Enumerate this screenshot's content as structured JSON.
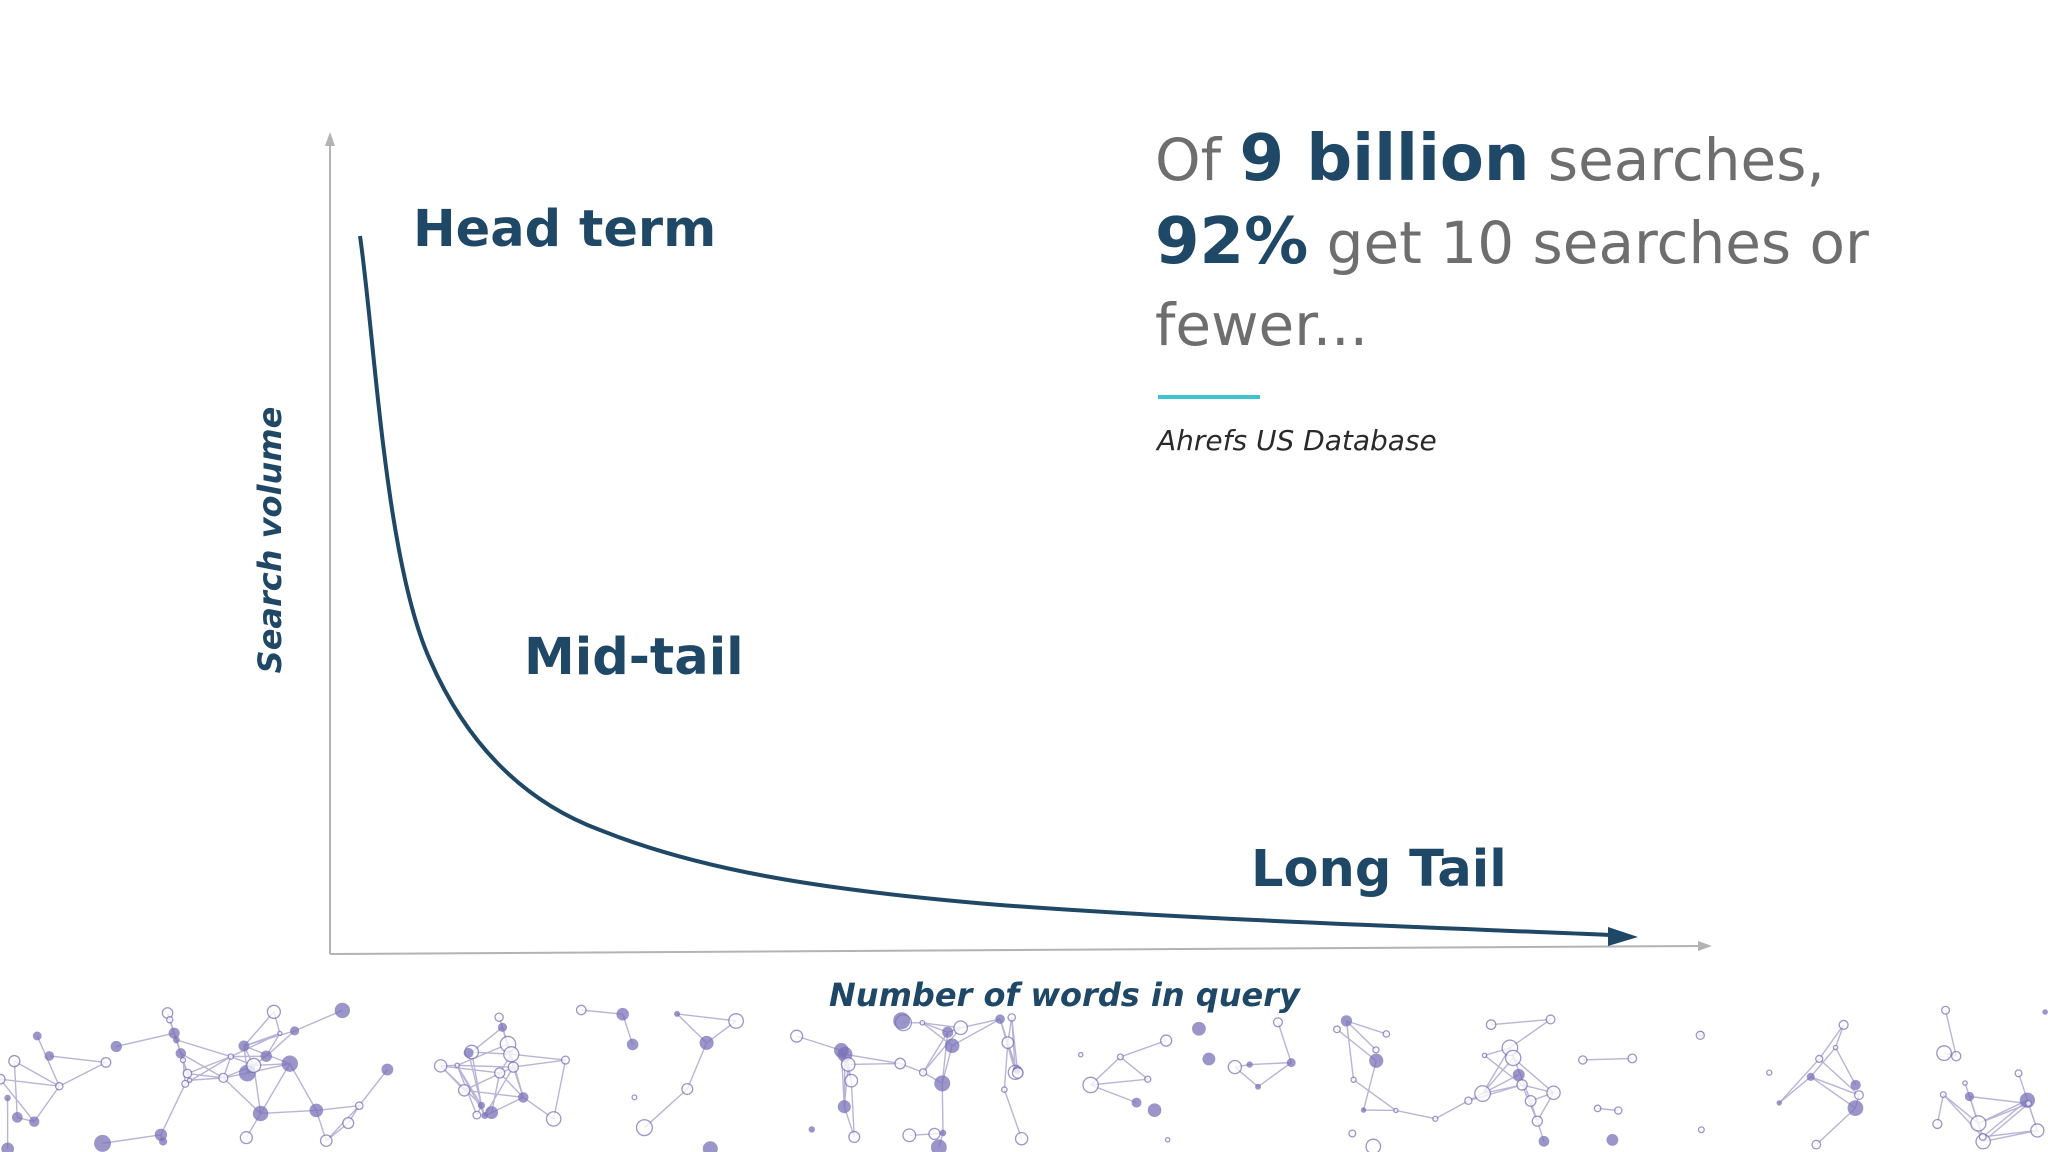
{
  "slide": {
    "curve_labels": {
      "head": "Head term",
      "mid": "Mid-tail",
      "long": "Long Tail"
    },
    "axes": {
      "y_label": "Search volume",
      "x_label": "Number of words in query"
    },
    "stat": {
      "prefix": "Of",
      "total": "9 billion",
      "total_suffix": "searches,",
      "percent": "92%",
      "percent_suffix": "get 10 searches or fewer..."
    },
    "source": "Ahrefs US Database"
  },
  "colors": {
    "curve": "#1f4766",
    "axis": "#b3b3b3",
    "accent_rule": "#3ec3d3",
    "network_nodes": "#7b72b8",
    "network_lines": "#b9b4d6"
  }
}
